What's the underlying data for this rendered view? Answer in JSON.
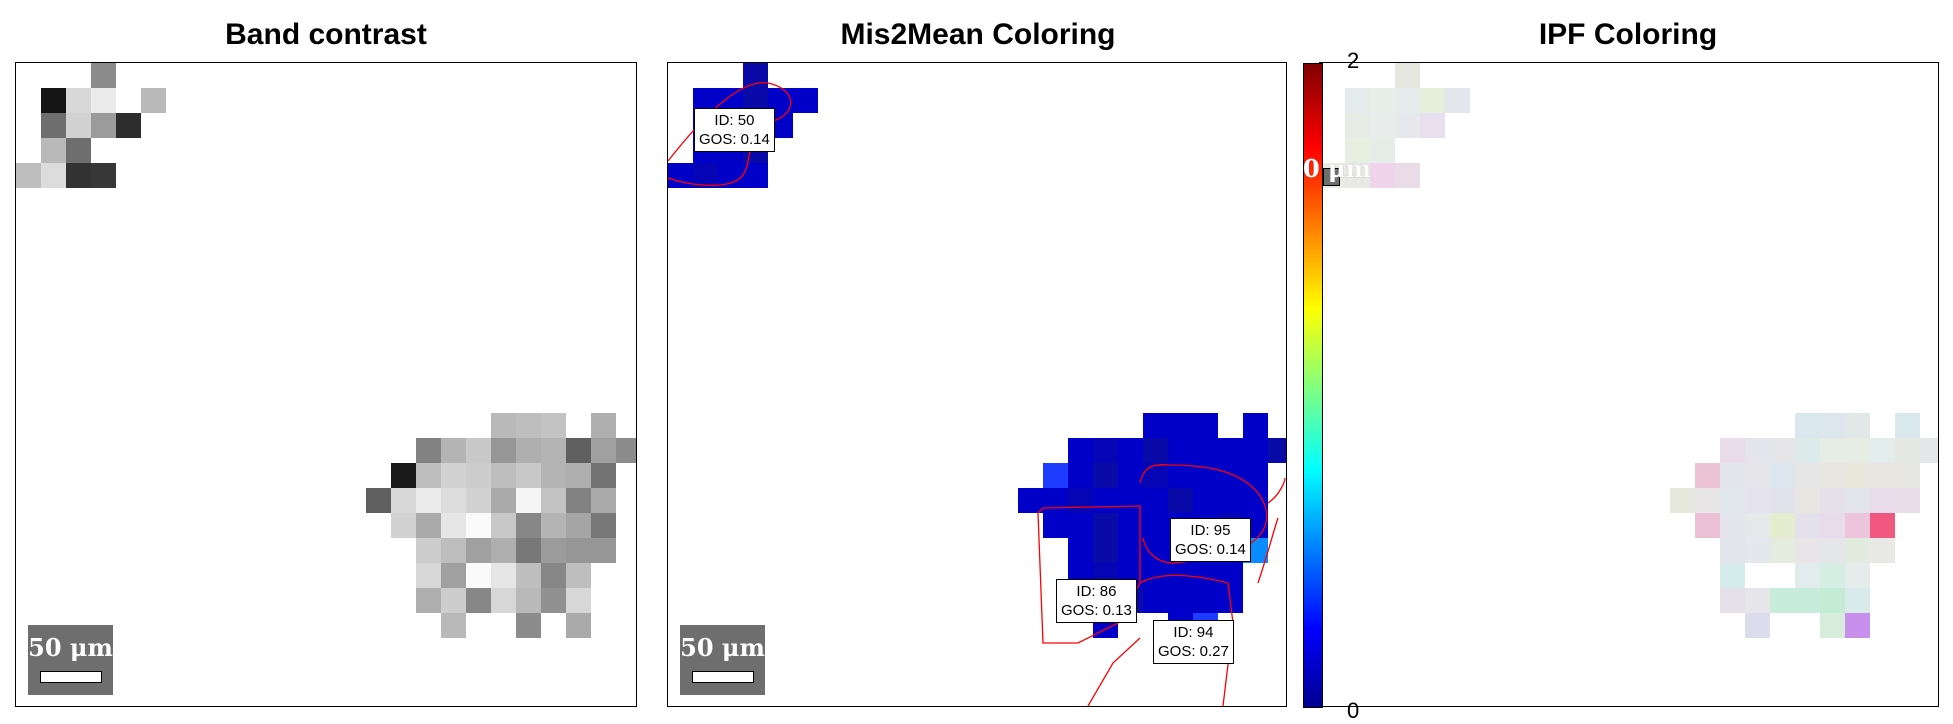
{
  "titles": {
    "band_contrast": "Band contrast",
    "mis2mean": "Mis2Mean Coloring",
    "ipf": "IPF Coloring"
  },
  "scalebar": {
    "label": "50 μm",
    "overlap_label": "0 μm"
  },
  "colorbar": {
    "min_label": "0",
    "max_label": "2",
    "colors": [
      "#00008f",
      "#0000ff",
      "#00ffff",
      "#ffff00",
      "#ff0000",
      "#800000"
    ]
  },
  "grain_labels": [
    {
      "id_text": "ID: 50",
      "gos_text": "GOS: 0.14"
    },
    {
      "id_text": "ID: 95",
      "gos_text": "GOS: 0.14"
    },
    {
      "id_text": "ID: 86",
      "gos_text": "GOS: 0.13"
    },
    {
      "id_text": "ID: 94",
      "gos_text": "GOS: 0.27"
    }
  ],
  "colors": {
    "boundary": "#ff0000",
    "scalebar_bg": "#6e6e6e"
  }
}
